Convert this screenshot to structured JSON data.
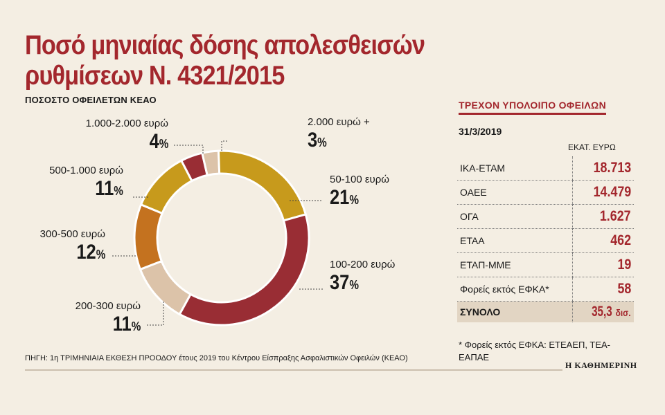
{
  "title_line1": "Ποσό μηνιαίας δόσης απολεσθεισών",
  "title_line2": "ρυθμίσεων Ν. 4321/2015",
  "chart_data": {
    "type": "pie",
    "subtitle": "ΠΟΣΟΣΤΟ ΟΦΕΙΛΕΤΩΝ ΚΕΑΟ",
    "unit": "%",
    "categories": [
      "2.000 ευρώ +",
      "50-100 ευρώ",
      "100-200 ευρώ",
      "200-300 ευρώ",
      "300-500 ευρώ",
      "500-1.000 ευρώ",
      "1.000-2.000 ευρώ"
    ],
    "values": [
      3,
      21,
      37,
      11,
      12,
      11,
      4
    ],
    "pct_labels": [
      "3",
      "21",
      "37",
      "11",
      "12",
      "11",
      "4"
    ],
    "colors": [
      "#dcc3a9",
      "#c79a1c",
      "#992d34",
      "#dcc3a9",
      "#c4721f",
      "#c79a1c",
      "#992d34"
    ]
  },
  "side": {
    "title": "ΤΡΕΧΟΝ ΥΠΟΛΟΙΠΟ ΟΦΕΙΛΩΝ",
    "date": "31/3/2019",
    "column_header": "ΕΚΑΤ. ΕΥΡΩ",
    "rows": [
      {
        "name": "ΙΚΑ-ΕΤΑΜ",
        "value": "18.713"
      },
      {
        "name": "ΟΑΕΕ",
        "value": "14.479"
      },
      {
        "name": "ΟΓΑ",
        "value": "1.627"
      },
      {
        "name": "ΕΤΑΑ",
        "value": "462"
      },
      {
        "name": "ΕΤΑΠ-ΜΜΕ",
        "value": "19"
      },
      {
        "name": "Φορείς εκτός ΕΦΚΑ*",
        "value": "58"
      }
    ],
    "total_label": "ΣΥΝΟΛΟ",
    "total_value": "35,3",
    "total_unit": "δισ.",
    "footnote": "* Φορείς εκτός ΕΦΚΑ: ΕΤΕΑΕΠ, ΤΕΑ-ΕΑΠΑΕ"
  },
  "source": "ΠΗΓΗ: 1η ΤΡΙΜΗΝΙΑΙΑ ΕΚΘΕΣΗ ΠΡΟΟΔΟΥ έτους 2019 του Κέντρου Είσπραξης Ασφαλιστικών Οφειλών (ΚΕΑΟ)",
  "brand": "Η ΚΑΘΗΜΕΡΙΝΗ"
}
